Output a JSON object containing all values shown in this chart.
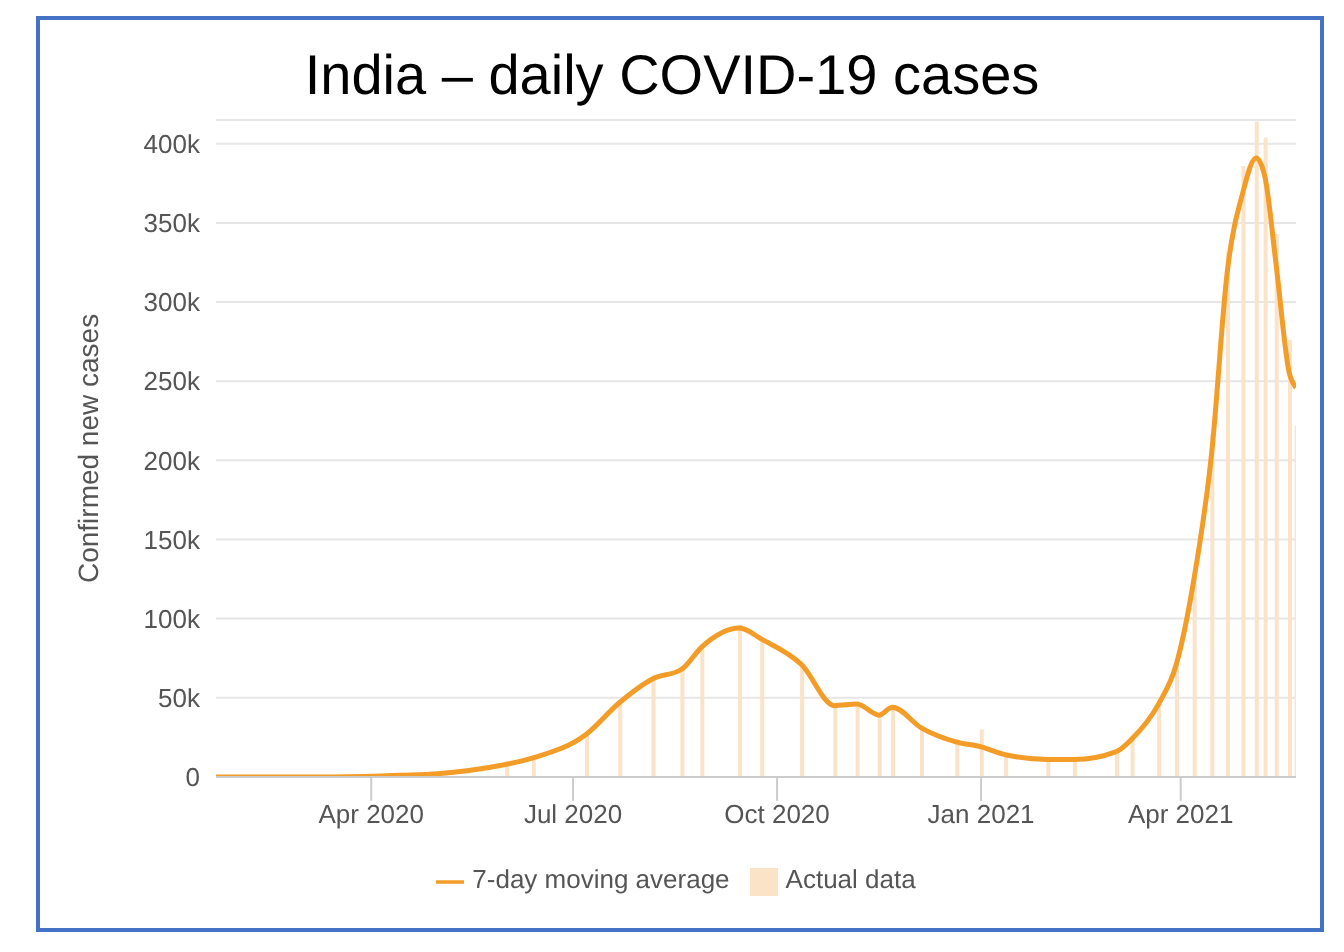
{
  "chart_data": {
    "type": "line",
    "title": "India – daily COVID-19 cases",
    "ylabel": "Confirmed new cases",
    "x": [
      "2020-01-22",
      "2020-03-15",
      "2020-04-15",
      "2020-05-01",
      "2020-05-15",
      "2020-06-01",
      "2020-06-13",
      "2020-07-07",
      "2020-07-22",
      "2020-08-06",
      "2020-08-19",
      "2020-08-28",
      "2020-09-14",
      "2020-09-24",
      "2020-10-12",
      "2020-10-27",
      "2020-11-06",
      "2020-11-16",
      "2020-11-22",
      "2020-12-05",
      "2020-12-21",
      "2021-01-01",
      "2021-01-12",
      "2021-01-31",
      "2021-02-12",
      "2021-03-03",
      "2021-03-10",
      "2021-03-22",
      "2021-03-30",
      "2021-04-07",
      "2021-04-15",
      "2021-04-22",
      "2021-04-29",
      "2021-05-05",
      "2021-05-09",
      "2021-05-14",
      "2021-05-20",
      "2021-05-23"
    ],
    "series": [
      {
        "name": "Actual data",
        "type": "bar",
        "color": "#fae3c6",
        "values": [
          null,
          null,
          null,
          null,
          null,
          8000,
          12000,
          28000,
          48000,
          64000,
          70000,
          84000,
          96000,
          86000,
          70000,
          44000,
          46000,
          38000,
          44000,
          30000,
          24000,
          30000,
          15000,
          11000,
          12000,
          17000,
          25000,
          47000,
          72000,
          126000,
          217000,
          332000,
          386000,
          414000,
          404000,
          343000,
          276000,
          222000
        ]
      },
      {
        "name": "7-day moving average",
        "color": "#f39c27",
        "values": [
          0,
          0,
          1000,
          2000,
          4000,
          8000,
          12000,
          27000,
          47000,
          62000,
          68000,
          82000,
          94000,
          87000,
          71000,
          45000,
          46000,
          39000,
          44000,
          31000,
          22000,
          19000,
          14000,
          11000,
          11000,
          16000,
          24000,
          46000,
          71000,
          125000,
          205000,
          319000,
          369000,
          391000,
          379000,
          324000,
          255000,
          246000
        ]
      }
    ],
    "xlim": [
      "2020-01-22",
      "2021-05-23"
    ],
    "xticks": [
      {
        "value": "2020-04-01",
        "label": "Apr 2020"
      },
      {
        "value": "2020-07-01",
        "label": "Jul 2020"
      },
      {
        "value": "2020-10-01",
        "label": "Oct 2020"
      },
      {
        "value": "2021-01-01",
        "label": "Jan 2021"
      },
      {
        "value": "2021-04-01",
        "label": "Apr 2021"
      }
    ],
    "ylim": [
      0,
      415000
    ],
    "yticks": [
      {
        "value": 0,
        "label": "0"
      },
      {
        "value": 50000,
        "label": "50k"
      },
      {
        "value": 100000,
        "label": "100k"
      },
      {
        "value": 150000,
        "label": "150k"
      },
      {
        "value": 200000,
        "label": "200k"
      },
      {
        "value": 250000,
        "label": "250k"
      },
      {
        "value": 300000,
        "label": "300k"
      },
      {
        "value": 350000,
        "label": "350k"
      },
      {
        "value": 400000,
        "label": "400k"
      }
    ],
    "grid": "y",
    "legend": "bottom",
    "marker": "none",
    "line_style": "solid"
  }
}
